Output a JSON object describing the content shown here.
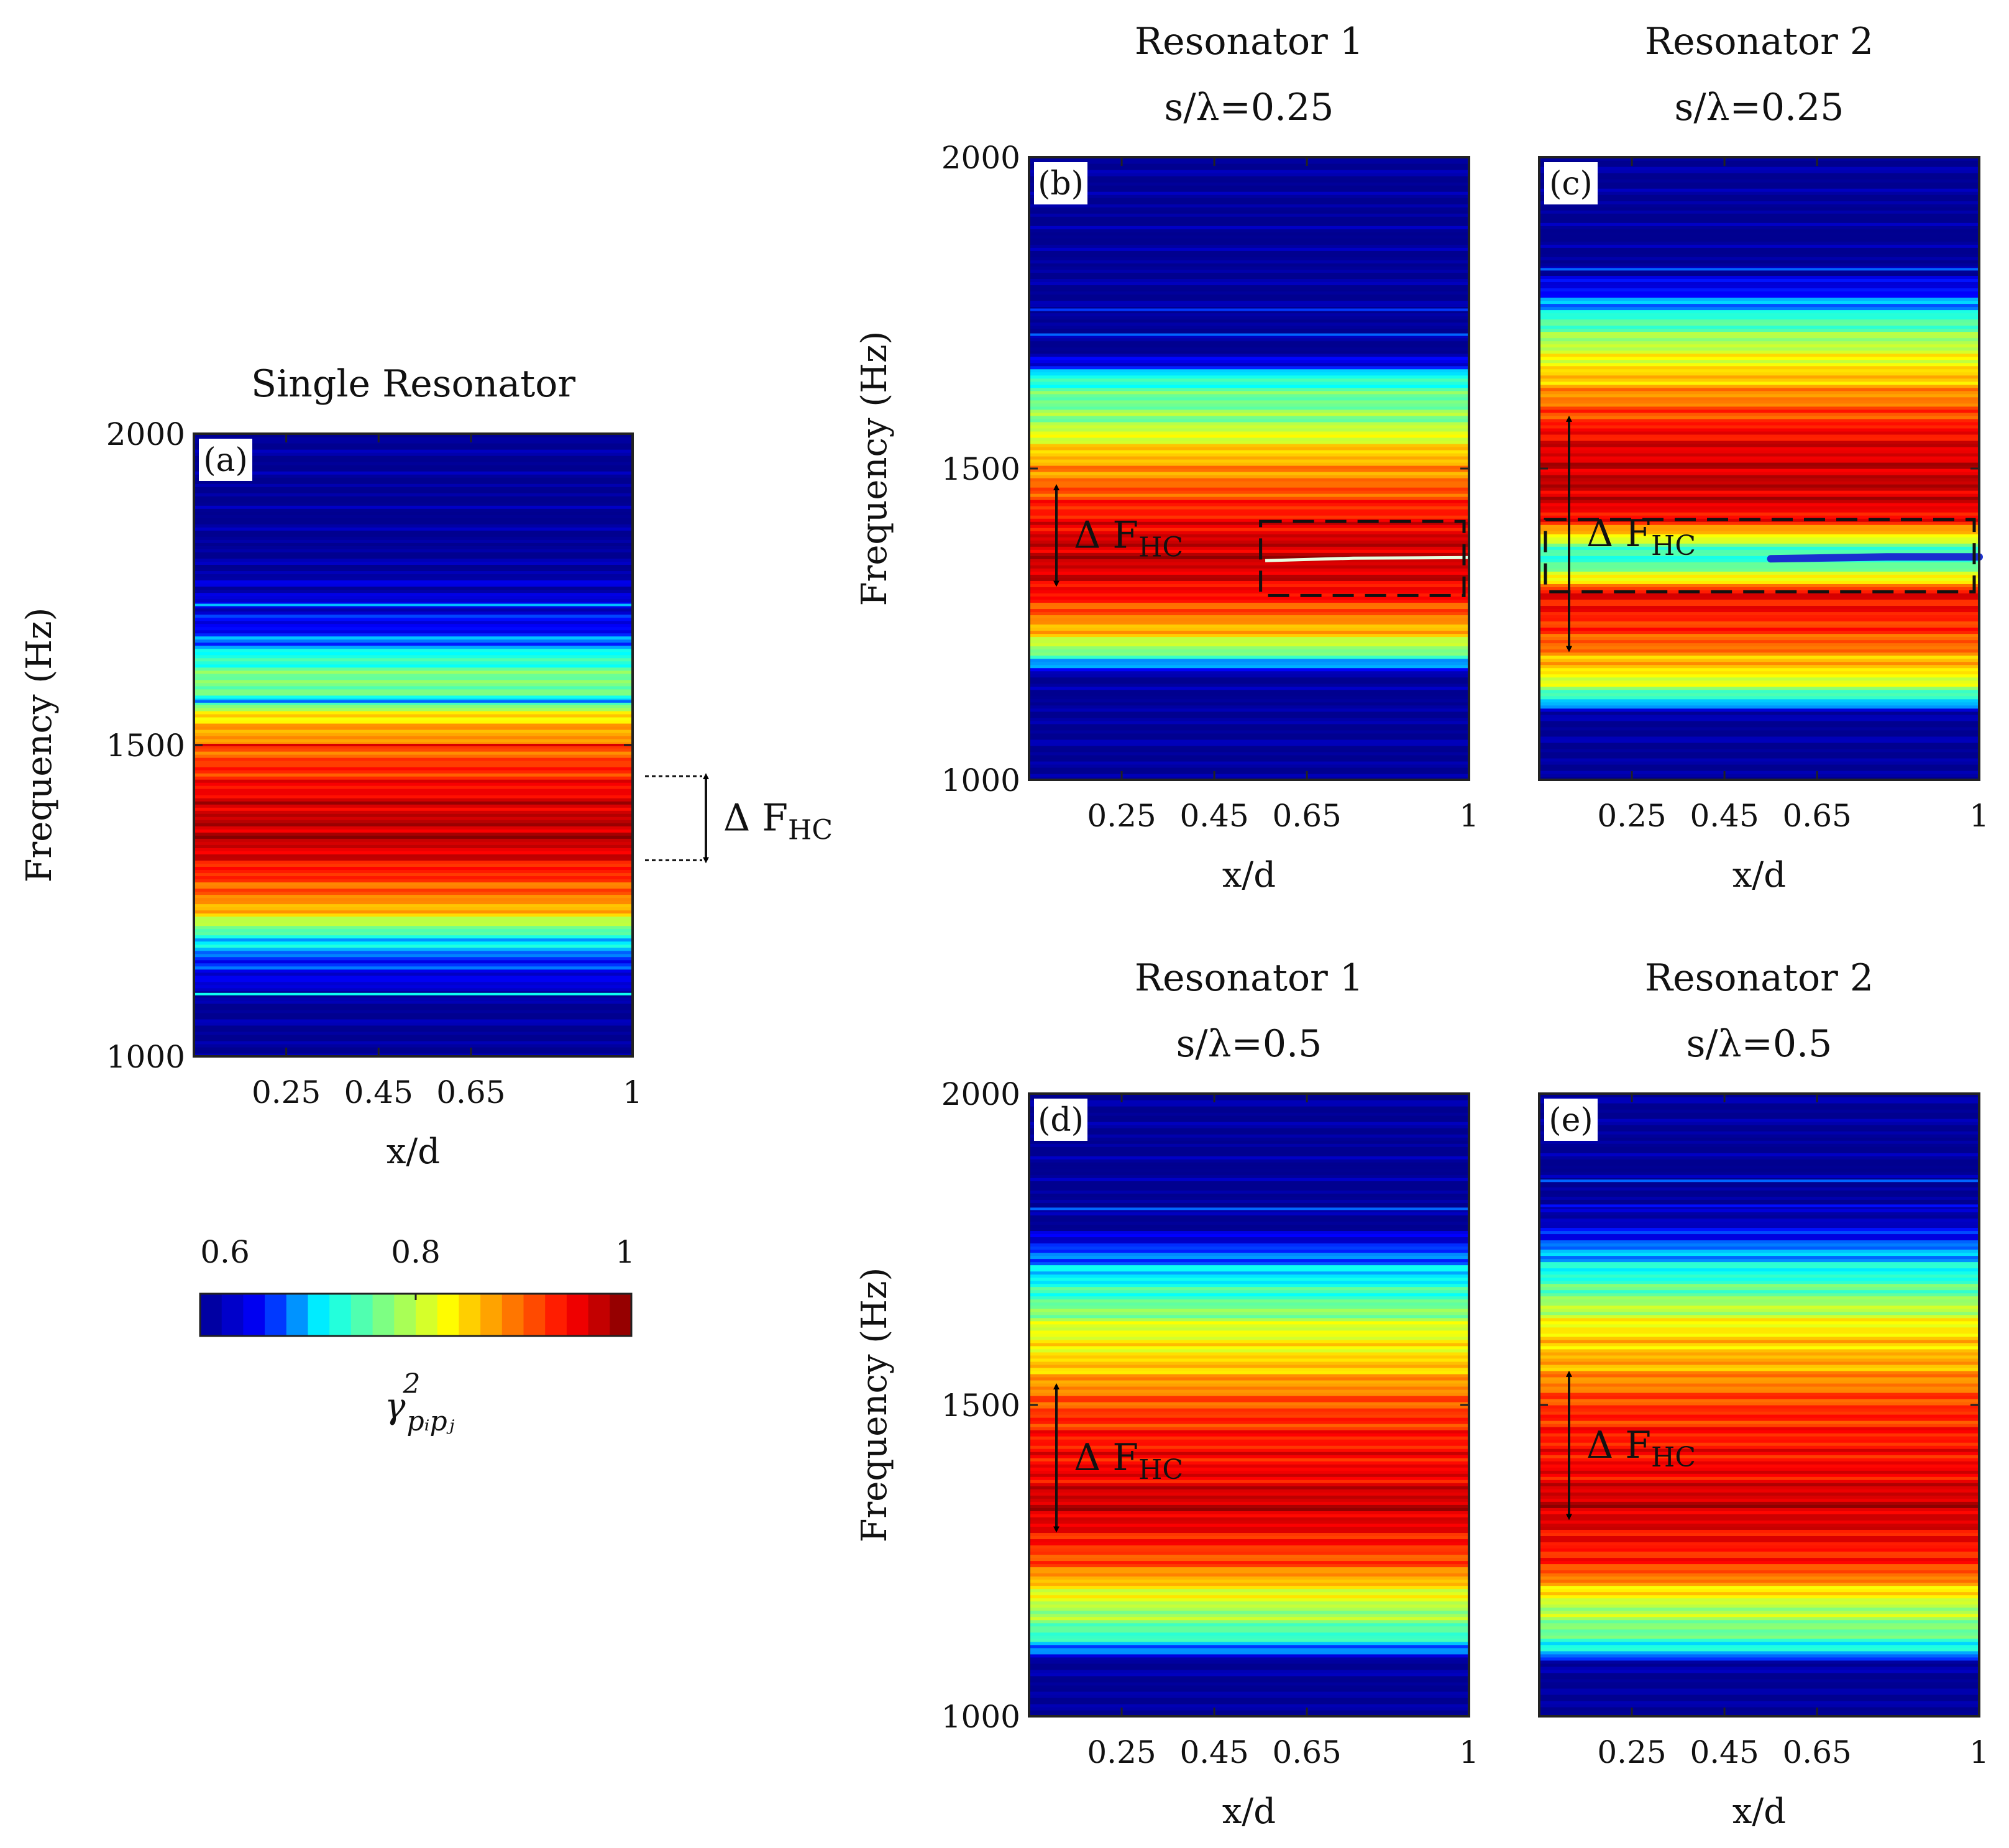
{
  "colormap": {
    "min": 0.6,
    "max": 1,
    "tick_labels": [
      "0.6",
      "0.8",
      "1"
    ],
    "label": "γ²_{p_i p_j}",
    "label_main": "γ",
    "label_sup": "2",
    "label_sub": "pᵢpⱼ",
    "stops": [
      "#00008f",
      "#0000ff",
      "#00ffff",
      "#80ff80",
      "#ffff00",
      "#ff8000",
      "#ff0000",
      "#800000"
    ]
  },
  "chart_data": [
    {
      "type": "heatmap",
      "panel": "(a)",
      "title_lines": [
        "Single Resonator"
      ],
      "xlabel": "x/d",
      "ylabel": "Frequency (Hz)",
      "xlim": [
        0.05,
        1
      ],
      "ylim": [
        1000,
        2000
      ],
      "xticks": [
        0.25,
        0.45,
        0.65,
        1
      ],
      "xtick_labels": [
        "0.25",
        "0.45",
        "0.65",
        "1"
      ],
      "yticks": [
        1000,
        1500,
        2000
      ],
      "ytick_labels": [
        "1000",
        "1500",
        "2000"
      ],
      "annotation": {
        "symbol": "Δ",
        "text": "F",
        "sub": "HC",
        "f_low": 1315,
        "f_high": 1450,
        "style": "external"
      },
      "profile": [
        [
          1000,
          0.6
        ],
        [
          1105,
          0.6
        ],
        [
          1115,
          0.64
        ],
        [
          1150,
          0.66
        ],
        [
          1175,
          0.7
        ],
        [
          1200,
          0.74
        ],
        [
          1215,
          0.8
        ],
        [
          1240,
          0.87
        ],
        [
          1270,
          0.9
        ],
        [
          1300,
          0.93
        ],
        [
          1330,
          0.96
        ],
        [
          1350,
          0.975
        ],
        [
          1375,
          0.97
        ],
        [
          1410,
          0.96
        ],
        [
          1450,
          0.93
        ],
        [
          1480,
          0.91
        ],
        [
          1510,
          0.88
        ],
        [
          1550,
          0.84
        ],
        [
          1570,
          0.72
        ],
        [
          1600,
          0.78
        ],
        [
          1640,
          0.73
        ],
        [
          1680,
          0.66
        ],
        [
          1720,
          0.64
        ],
        [
          1770,
          0.62
        ],
        [
          1800,
          0.6
        ],
        [
          2000,
          0.6
        ]
      ],
      "lines": [
        [
          1100,
          0.72
        ],
        [
          1725,
          0.7
        ],
        [
          1570,
          0.68
        ],
        [
          1500,
          0.96
        ]
      ]
    },
    {
      "type": "heatmap",
      "panel": "(b)",
      "title_lines": [
        "Resonator 1",
        "s/λ=0.25"
      ],
      "xlabel": "x/d",
      "ylabel": "Frequency (Hz)",
      "xlim": [
        0.05,
        1
      ],
      "ylim": [
        1000,
        2000
      ],
      "xticks": [
        0.25,
        0.45,
        0.65,
        1
      ],
      "xtick_labels": [
        "0.25",
        "0.45",
        "0.65",
        "1"
      ],
      "yticks": [
        1000,
        1500,
        2000
      ],
      "ytick_labels": [
        "1000",
        "1500",
        "2000"
      ],
      "annotation": {
        "symbol": "Δ",
        "text": "F",
        "sub": "HC",
        "f_low": 1315,
        "f_high": 1470,
        "style": "internal"
      },
      "dashed_box": {
        "x0": 0.55,
        "x1": 1.0,
        "f_low": 1296,
        "f_high": 1415
      },
      "profile": [
        [
          1000,
          0.6
        ],
        [
          1165,
          0.6
        ],
        [
          1180,
          0.66
        ],
        [
          1195,
          0.73
        ],
        [
          1215,
          0.79
        ],
        [
          1240,
          0.86
        ],
        [
          1270,
          0.9
        ],
        [
          1300,
          0.94
        ],
        [
          1330,
          0.96
        ],
        [
          1360,
          0.97
        ],
        [
          1390,
          0.96
        ],
        [
          1420,
          0.94
        ],
        [
          1450,
          0.92
        ],
        [
          1480,
          0.89
        ],
        [
          1520,
          0.86
        ],
        [
          1550,
          0.82
        ],
        [
          1580,
          0.78
        ],
        [
          1620,
          0.76
        ],
        [
          1650,
          0.72
        ],
        [
          1665,
          0.66
        ],
        [
          1690,
          0.6
        ],
        [
          2000,
          0.6
        ]
      ],
      "lines": [
        [
          1715,
          0.68
        ],
        [
          1755,
          0.67
        ]
      ]
    },
    {
      "type": "heatmap",
      "panel": "(c)",
      "title_lines": [
        "Resonator 2",
        "s/λ=0.25"
      ],
      "xlabel": "x/d",
      "ylabel": "",
      "xlim": [
        0.05,
        1
      ],
      "ylim": [
        1000,
        2000
      ],
      "xticks": [
        0.25,
        0.45,
        0.65,
        1
      ],
      "xtick_labels": [
        "0.25",
        "0.45",
        "0.65",
        "1"
      ],
      "yticks": [
        1000,
        1500,
        2000
      ],
      "ytick_labels": [],
      "annotation": {
        "symbol": "Δ",
        "text": "F",
        "sub": "HC",
        "f_low": 1210,
        "f_high": 1580,
        "style": "internal"
      },
      "dashed_box": {
        "x0": 0.05,
        "x1": 1.0,
        "f_low": 1302,
        "f_high": 1418
      },
      "profile": [
        [
          1000,
          0.6
        ],
        [
          1100,
          0.6
        ],
        [
          1120,
          0.68
        ],
        [
          1135,
          0.74
        ],
        [
          1160,
          0.82
        ],
        [
          1190,
          0.86
        ],
        [
          1220,
          0.9
        ],
        [
          1260,
          0.93
        ],
        [
          1300,
          0.95
        ],
        [
          1325,
          0.82
        ],
        [
          1345,
          0.76
        ],
        [
          1360,
          0.72
        ],
        [
          1385,
          0.8
        ],
        [
          1415,
          0.93
        ],
        [
          1445,
          0.96
        ],
        [
          1480,
          0.97
        ],
        [
          1520,
          0.96
        ],
        [
          1550,
          0.95
        ],
        [
          1580,
          0.92
        ],
        [
          1620,
          0.88
        ],
        [
          1660,
          0.84
        ],
        [
          1700,
          0.8
        ],
        [
          1740,
          0.74
        ],
        [
          1770,
          0.68
        ],
        [
          1800,
          0.64
        ],
        [
          1830,
          0.6
        ],
        [
          2000,
          0.6
        ]
      ],
      "lines": [
        [
          1820,
          0.68
        ]
      ]
    },
    {
      "type": "heatmap",
      "panel": "(d)",
      "title_lines": [
        "Resonator 1",
        "s/λ=0.5"
      ],
      "xlabel": "x/d",
      "ylabel": "Frequency (Hz)",
      "xlim": [
        0.05,
        1
      ],
      "ylim": [
        1000,
        2000
      ],
      "xticks": [
        0.25,
        0.45,
        0.65,
        1
      ],
      "xtick_labels": [
        "0.25",
        "0.45",
        "0.65",
        "1"
      ],
      "yticks": [
        1000,
        1500,
        2000
      ],
      "ytick_labels": [
        "1000",
        "1500",
        "2000"
      ],
      "annotation": {
        "symbol": "Δ",
        "text": "F",
        "sub": "HC",
        "f_low": 1300,
        "f_high": 1530,
        "style": "internal"
      },
      "profile": [
        [
          1000,
          0.6
        ],
        [
          1090,
          0.6
        ],
        [
          1100,
          0.66
        ],
        [
          1120,
          0.72
        ],
        [
          1150,
          0.77
        ],
        [
          1180,
          0.8
        ],
        [
          1210,
          0.84
        ],
        [
          1240,
          0.9
        ],
        [
          1280,
          0.93
        ],
        [
          1320,
          0.96
        ],
        [
          1345,
          0.97
        ],
        [
          1380,
          0.95
        ],
        [
          1420,
          0.94
        ],
        [
          1460,
          0.93
        ],
        [
          1500,
          0.91
        ],
        [
          1540,
          0.87
        ],
        [
          1580,
          0.84
        ],
        [
          1620,
          0.82
        ],
        [
          1660,
          0.76
        ],
        [
          1700,
          0.72
        ],
        [
          1740,
          0.68
        ],
        [
          1770,
          0.64
        ],
        [
          1790,
          0.6
        ],
        [
          2000,
          0.6
        ]
      ],
      "lines": [
        [
          1815,
          0.68
        ]
      ]
    },
    {
      "type": "heatmap",
      "panel": "(e)",
      "title_lines": [
        "Resonator 2",
        "s/λ=0.5"
      ],
      "xlabel": "x/d",
      "ylabel": "",
      "xlim": [
        0.05,
        1
      ],
      "ylim": [
        1000,
        2000
      ],
      "xticks": [
        0.25,
        0.45,
        0.65,
        1
      ],
      "xtick_labels": [
        "0.25",
        "0.45",
        "0.65",
        "1"
      ],
      "yticks": [
        1000,
        1500,
        2000
      ],
      "ytick_labels": [],
      "annotation": {
        "symbol": "Δ",
        "text": "F",
        "sub": "HC",
        "f_low": 1320,
        "f_high": 1550,
        "style": "internal"
      },
      "profile": [
        [
          1000,
          0.6
        ],
        [
          1085,
          0.6
        ],
        [
          1095,
          0.68
        ],
        [
          1120,
          0.74
        ],
        [
          1150,
          0.78
        ],
        [
          1180,
          0.8
        ],
        [
          1210,
          0.86
        ],
        [
          1240,
          0.92
        ],
        [
          1280,
          0.94
        ],
        [
          1320,
          0.96
        ],
        [
          1345,
          0.97
        ],
        [
          1380,
          0.95
        ],
        [
          1420,
          0.94
        ],
        [
          1460,
          0.93
        ],
        [
          1500,
          0.92
        ],
        [
          1540,
          0.88
        ],
        [
          1580,
          0.86
        ],
        [
          1620,
          0.84
        ],
        [
          1660,
          0.79
        ],
        [
          1700,
          0.74
        ],
        [
          1740,
          0.7
        ],
        [
          1770,
          0.66
        ],
        [
          1800,
          0.62
        ],
        [
          1830,
          0.6
        ],
        [
          2000,
          0.6
        ]
      ],
      "lines": [
        [
          1860,
          0.68
        ],
        [
          1820,
          0.66
        ]
      ]
    }
  ]
}
